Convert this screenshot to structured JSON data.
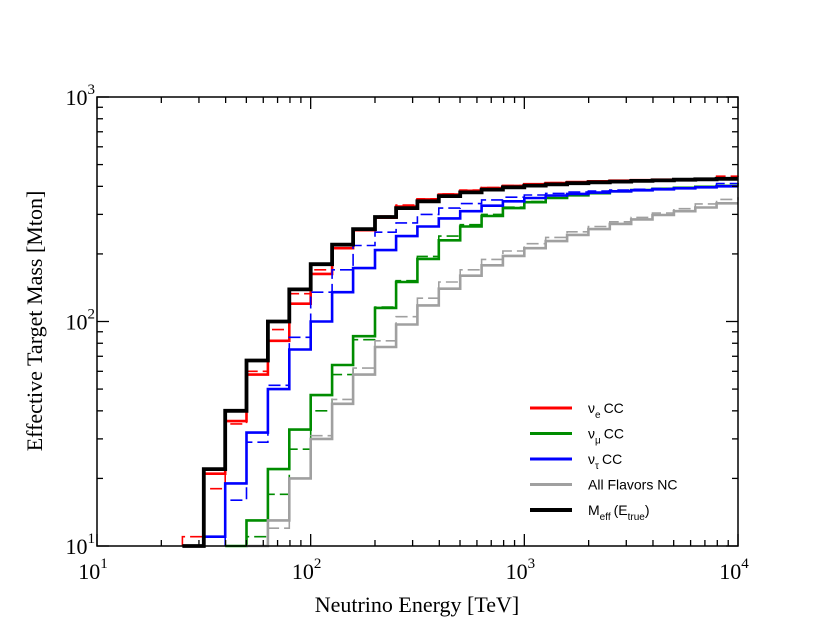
{
  "chart_data": {
    "type": "line",
    "subtype": "step",
    "scale": {
      "x": "log",
      "y": "log"
    },
    "xlabel": "Neutrino Energy [TeV]",
    "ylabel": "Effective Target Mass [Mton]",
    "xlim": [
      10,
      10000
    ],
    "ylim": [
      10,
      1000
    ],
    "x_ticks": [
      {
        "base": "10",
        "exp": "1",
        "value": 10
      },
      {
        "base": "10",
        "exp": "2",
        "value": 100
      },
      {
        "base": "10",
        "exp": "3",
        "value": 1000
      },
      {
        "base": "10",
        "exp": "4",
        "value": 10000
      }
    ],
    "y_ticks": [
      {
        "base": "10",
        "exp": "1",
        "value": 10
      },
      {
        "base": "10",
        "exp": "2",
        "value": 100
      },
      {
        "base": "10",
        "exp": "3",
        "value": 1000
      }
    ],
    "legend_position": "bottom-right",
    "legend": [
      {
        "sym": "ν",
        "sub": "e",
        "text": "CC",
        "color": "#ff0000"
      },
      {
        "sym": "ν",
        "sub": "μ",
        "text": "CC",
        "color": "#008c00"
      },
      {
        "sym": "ν",
        "sub": "τ",
        "text": "CC",
        "color": "#0000ff"
      },
      {
        "sym": "",
        "sub": "",
        "text": "All Flavors NC",
        "color": "#a0a0a0"
      },
      {
        "sym": "M",
        "sub": "eff",
        "text": "(E",
        "sub2": "true",
        "tail": ")",
        "color": "#000000"
      }
    ],
    "series": [
      {
        "name": "nu_e CC",
        "color": "#ff0000",
        "solid": [
          [
            25.1,
            10
          ],
          [
            31.6,
            21
          ],
          [
            39.8,
            36
          ],
          [
            50.1,
            58
          ],
          [
            63.1,
            82
          ],
          [
            79.4,
            120
          ],
          [
            100,
            163
          ],
          [
            126,
            212
          ],
          [
            158,
            255
          ],
          [
            200,
            290
          ],
          [
            251,
            325
          ],
          [
            316,
            350
          ],
          [
            398,
            368
          ],
          [
            501,
            382
          ],
          [
            631,
            393
          ],
          [
            794,
            402
          ],
          [
            1000,
            409
          ],
          [
            1259,
            414
          ],
          [
            1585,
            418
          ],
          [
            1995,
            421
          ],
          [
            2512,
            424
          ],
          [
            3162,
            426
          ],
          [
            3981,
            428
          ],
          [
            5012,
            430
          ],
          [
            6310,
            432
          ],
          [
            7943,
            434
          ],
          [
            10000,
            434
          ]
        ],
        "dashed": [
          [
            25.1,
            11
          ],
          [
            31.6,
            18
          ],
          [
            39.8,
            35
          ],
          [
            50.1,
            60
          ],
          [
            63.1,
            92
          ],
          [
            79.4,
            133
          ],
          [
            100,
            170
          ],
          [
            126,
            218
          ],
          [
            158,
            260
          ],
          [
            200,
            295
          ],
          [
            251,
            330
          ],
          [
            316,
            352
          ],
          [
            398,
            370
          ],
          [
            501,
            385
          ],
          [
            631,
            395
          ],
          [
            794,
            403
          ],
          [
            1000,
            410
          ],
          [
            1259,
            415
          ],
          [
            1585,
            419
          ],
          [
            1995,
            422
          ],
          [
            2512,
            425
          ],
          [
            3162,
            427
          ],
          [
            3981,
            429
          ],
          [
            5012,
            431
          ],
          [
            6310,
            433
          ],
          [
            7943,
            444
          ],
          [
            10000,
            446
          ]
        ]
      },
      {
        "name": "nu_mu CC",
        "color": "#008c00",
        "solid": [
          [
            39.8,
            10
          ],
          [
            50.1,
            13
          ],
          [
            63.1,
            22
          ],
          [
            79.4,
            33
          ],
          [
            100,
            47
          ],
          [
            126,
            64
          ],
          [
            158,
            86
          ],
          [
            200,
            115
          ],
          [
            251,
            150
          ],
          [
            316,
            190
          ],
          [
            398,
            230
          ],
          [
            501,
            265
          ],
          [
            631,
            295
          ],
          [
            794,
            320
          ],
          [
            1000,
            340
          ],
          [
            1259,
            355
          ],
          [
            1585,
            365
          ],
          [
            1995,
            373
          ],
          [
            2512,
            380
          ],
          [
            3162,
            385
          ],
          [
            3981,
            390
          ],
          [
            5012,
            394
          ],
          [
            6310,
            398
          ],
          [
            7943,
            402
          ],
          [
            10000,
            402
          ]
        ],
        "dashed": [
          [
            50.1,
            11
          ],
          [
            63.1,
            17
          ],
          [
            79.4,
            27
          ],
          [
            100,
            40
          ],
          [
            126,
            58
          ],
          [
            158,
            83
          ],
          [
            200,
            116
          ],
          [
            251,
            152
          ],
          [
            316,
            195
          ],
          [
            398,
            240
          ],
          [
            501,
            270
          ],
          [
            631,
            300
          ],
          [
            794,
            323
          ],
          [
            1000,
            342
          ],
          [
            1259,
            356
          ],
          [
            1585,
            366
          ],
          [
            1995,
            374
          ],
          [
            2512,
            381
          ],
          [
            3162,
            386
          ],
          [
            3981,
            391
          ],
          [
            5012,
            395
          ],
          [
            6310,
            399
          ],
          [
            7943,
            402
          ],
          [
            10000,
            412
          ]
        ]
      },
      {
        "name": "nu_tau CC",
        "color": "#0000ff",
        "solid": [
          [
            31.6,
            11
          ],
          [
            39.8,
            19
          ],
          [
            50.1,
            32
          ],
          [
            63.1,
            50
          ],
          [
            79.4,
            75
          ],
          [
            100,
            100
          ],
          [
            126,
            135
          ],
          [
            158,
            173
          ],
          [
            200,
            208
          ],
          [
            251,
            240
          ],
          [
            316,
            265
          ],
          [
            398,
            288
          ],
          [
            501,
            310
          ],
          [
            631,
            328
          ],
          [
            794,
            343
          ],
          [
            1000,
            355
          ],
          [
            1259,
            364
          ],
          [
            1585,
            370
          ],
          [
            1995,
            375
          ],
          [
            2512,
            380
          ],
          [
            3162,
            384
          ],
          [
            3981,
            388
          ],
          [
            5012,
            392
          ],
          [
            6310,
            396
          ],
          [
            7943,
            400
          ],
          [
            10000,
            400
          ]
        ],
        "dashed": [
          [
            39.8,
            16
          ],
          [
            50.1,
            29
          ],
          [
            63.1,
            52
          ],
          [
            79.4,
            85
          ],
          [
            100,
            135
          ],
          [
            126,
            170
          ],
          [
            158,
            218
          ],
          [
            200,
            250
          ],
          [
            251,
            275
          ],
          [
            316,
            300
          ],
          [
            398,
            320
          ],
          [
            501,
            335
          ],
          [
            631,
            348
          ],
          [
            794,
            358
          ],
          [
            1000,
            366
          ],
          [
            1259,
            372
          ],
          [
            1585,
            377
          ],
          [
            1995,
            381
          ],
          [
            2512,
            385
          ],
          [
            3162,
            388
          ],
          [
            3981,
            391
          ],
          [
            5012,
            394
          ],
          [
            6310,
            397
          ],
          [
            7943,
            412
          ],
          [
            10000,
            414
          ]
        ]
      },
      {
        "name": "All Flavors NC",
        "color": "#a0a0a0",
        "solid": [
          [
            50.1,
            10
          ],
          [
            63.1,
            13
          ],
          [
            79.4,
            20
          ],
          [
            100,
            30
          ],
          [
            126,
            43
          ],
          [
            158,
            58
          ],
          [
            200,
            77
          ],
          [
            251,
            97
          ],
          [
            316,
            118
          ],
          [
            398,
            140
          ],
          [
            501,
            160
          ],
          [
            631,
            178
          ],
          [
            794,
            196
          ],
          [
            1000,
            212
          ],
          [
            1259,
            228
          ],
          [
            1585,
            243
          ],
          [
            1995,
            258
          ],
          [
            2512,
            272
          ],
          [
            3162,
            285
          ],
          [
            3981,
            298
          ],
          [
            5012,
            310
          ],
          [
            6310,
            322
          ],
          [
            7943,
            336
          ],
          [
            10000,
            336
          ]
        ],
        "dashed": [
          [
            63.1,
            12
          ],
          [
            79.4,
            20
          ],
          [
            100,
            31
          ],
          [
            126,
            45
          ],
          [
            158,
            62
          ],
          [
            200,
            82
          ],
          [
            251,
            105
          ],
          [
            316,
            127
          ],
          [
            398,
            150
          ],
          [
            501,
            170
          ],
          [
            631,
            189
          ],
          [
            794,
            206
          ],
          [
            1000,
            222
          ],
          [
            1259,
            237
          ],
          [
            1585,
            251
          ],
          [
            1995,
            265
          ],
          [
            2512,
            278
          ],
          [
            3162,
            291
          ],
          [
            3981,
            304
          ],
          [
            5012,
            318
          ],
          [
            6310,
            334
          ],
          [
            7943,
            350
          ],
          [
            10000,
            358
          ]
        ]
      },
      {
        "name": "M_eff (E_true)",
        "color": "#000000",
        "solid": [
          [
            25.1,
            10
          ],
          [
            31.6,
            22
          ],
          [
            39.8,
            40
          ],
          [
            50.1,
            67
          ],
          [
            63.1,
            100
          ],
          [
            79.4,
            139
          ],
          [
            100,
            180
          ],
          [
            126,
            220
          ],
          [
            158,
            258
          ],
          [
            200,
            292
          ],
          [
            251,
            320
          ],
          [
            316,
            343
          ],
          [
            398,
            362
          ],
          [
            501,
            376
          ],
          [
            631,
            387
          ],
          [
            794,
            396
          ],
          [
            1000,
            403
          ],
          [
            1259,
            408
          ],
          [
            1585,
            413
          ],
          [
            1995,
            417
          ],
          [
            2512,
            420
          ],
          [
            3162,
            423
          ],
          [
            3981,
            425
          ],
          [
            5012,
            428
          ],
          [
            6310,
            430
          ],
          [
            7943,
            432
          ],
          [
            10000,
            432
          ]
        ]
      }
    ]
  }
}
